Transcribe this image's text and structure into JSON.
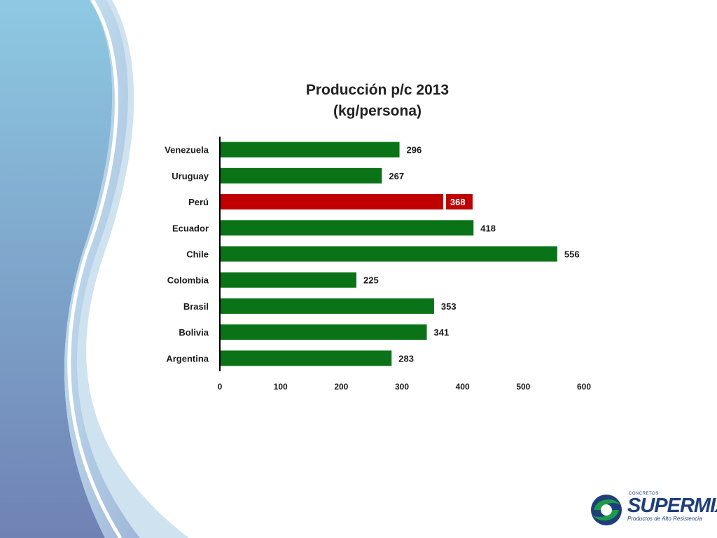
{
  "title_line1": "Producción p/c 2013",
  "title_line2": "(kg/persona)",
  "chart_data": {
    "type": "bar",
    "orientation": "horizontal",
    "title": "Producción p/c 2013 (kg/persona)",
    "categories": [
      "Venezuela",
      "Uruguay",
      "Perú",
      "Ecuador",
      "Chile",
      "Colombia",
      "Brasil",
      "Bolivia",
      "Argentina"
    ],
    "values": [
      296,
      267,
      368,
      418,
      556,
      225,
      353,
      341,
      283
    ],
    "highlight": "Perú",
    "xlim": [
      0,
      600
    ],
    "xticks": [
      0,
      100,
      200,
      300,
      400,
      500,
      600
    ],
    "grid": false,
    "legend": "none",
    "colors": {
      "bar": "#0b7317",
      "highlight": "#c00000",
      "axis": "#000000"
    }
  },
  "logo": {
    "top_text": "CONCRETOS",
    "name": "SUPERMIX",
    "subtitle": "Productos de Alto Resistencia"
  }
}
